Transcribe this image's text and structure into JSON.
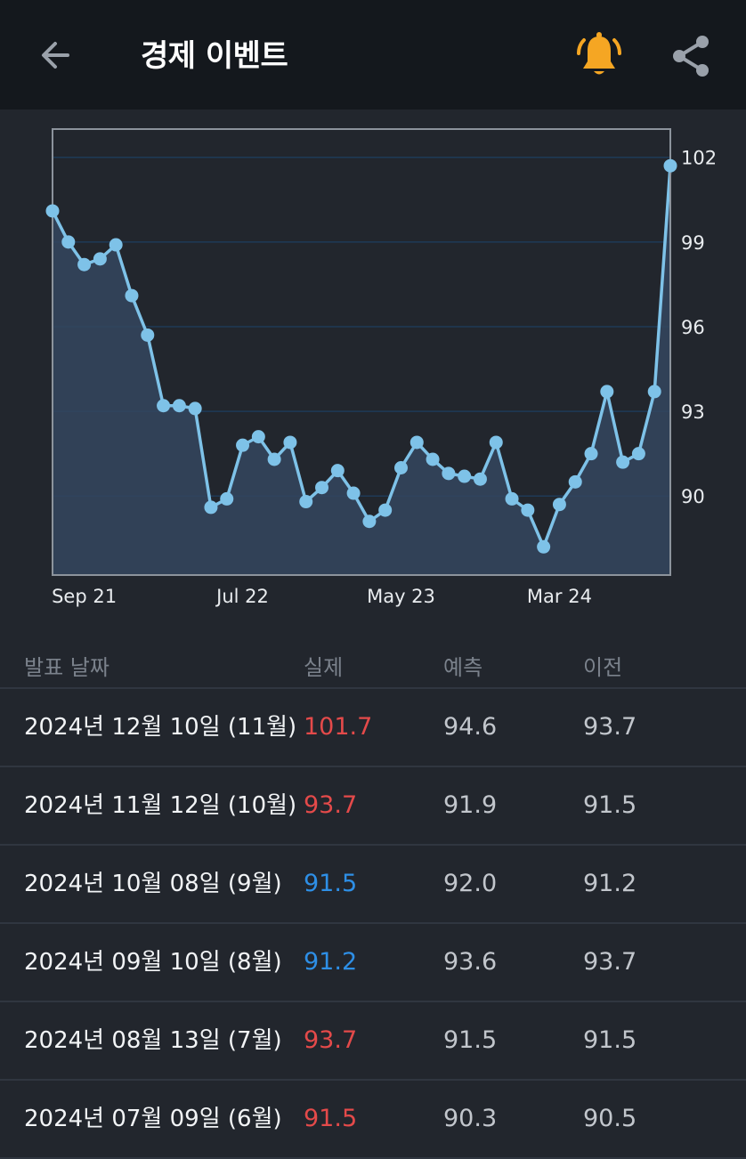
{
  "header": {
    "title": "경제 이벤트",
    "back_icon": "arrow-left-icon",
    "bell_icon": "bell-icon",
    "share_icon": "share-icon",
    "bell_color": "#f5a623"
  },
  "colors": {
    "line": "#7ec2e8",
    "fill": "#34465f",
    "up": "#e44a4a",
    "down": "#2e8fe6"
  },
  "chart_data": {
    "type": "area",
    "x_ticks": [
      "Sep 21",
      "Jul 22",
      "May 23",
      "Mar 24"
    ],
    "y_ticks": [
      90,
      93,
      96,
      99,
      102
    ],
    "ylim": [
      87.2,
      103.0
    ],
    "grid": true,
    "values": [
      100.1,
      99.0,
      98.2,
      98.4,
      98.9,
      97.1,
      95.7,
      93.2,
      93.2,
      93.1,
      89.6,
      89.9,
      91.8,
      92.1,
      91.3,
      91.9,
      89.8,
      90.3,
      90.9,
      90.1,
      89.1,
      89.5,
      91.0,
      91.9,
      91.3,
      90.8,
      90.7,
      90.6,
      91.9,
      89.9,
      89.5,
      88.2,
      89.7,
      90.5,
      91.5,
      93.7,
      91.2,
      91.5,
      93.7,
      101.7
    ]
  },
  "table": {
    "headers": {
      "date": "발표 날짜",
      "actual": "실제",
      "forecast": "예측",
      "previous": "이전"
    },
    "rows": [
      {
        "date": "2024년 12월 10일 (11월)",
        "actual": "101.7",
        "forecast": "94.6",
        "previous": "93.7",
        "dir": "up"
      },
      {
        "date": "2024년 11월 12일 (10월)",
        "actual": "93.7",
        "forecast": "91.9",
        "previous": "91.5",
        "dir": "up"
      },
      {
        "date": "2024년 10월 08일 (9월)",
        "actual": "91.5",
        "forecast": "92.0",
        "previous": "91.2",
        "dir": "down"
      },
      {
        "date": "2024년 09월 10일 (8월)",
        "actual": "91.2",
        "forecast": "93.6",
        "previous": "93.7",
        "dir": "down"
      },
      {
        "date": "2024년 08월 13일 (7월)",
        "actual": "93.7",
        "forecast": "91.5",
        "previous": "91.5",
        "dir": "up"
      },
      {
        "date": "2024년 07월 09일 (6월)",
        "actual": "91.5",
        "forecast": "90.3",
        "previous": "90.5",
        "dir": "up"
      }
    ]
  }
}
